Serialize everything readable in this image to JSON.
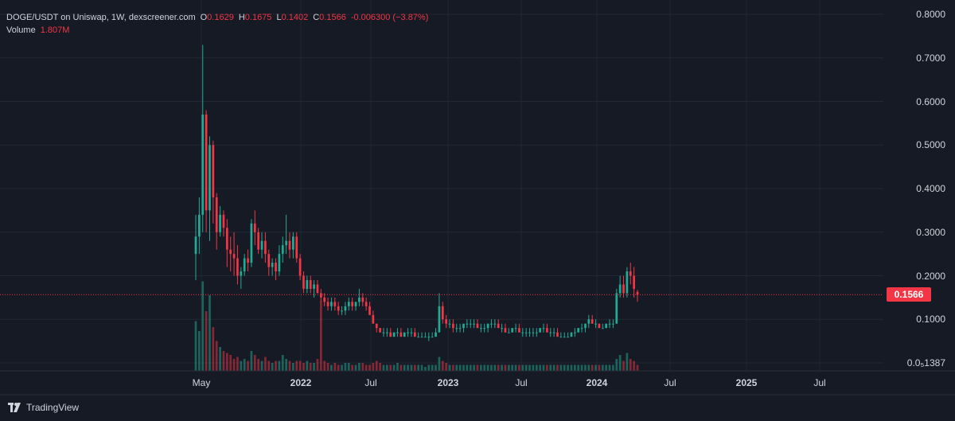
{
  "legend": {
    "pair": "DOGE/USDT on Uniswap, 1W, dexscreener.com",
    "o_key": "O",
    "o_val": "0.1629",
    "h_key": "H",
    "h_val": "0.1675",
    "l_key": "L",
    "l_val": "0.1402",
    "c_key": "C",
    "c_val": "0.1566",
    "change": "-0.006300 (−3.87%)",
    "volume_key": "Volume",
    "volume_val": "1.807M"
  },
  "price_axis": {
    "labels": [
      "0.8000",
      "0.7000",
      "0.6000",
      "0.5000",
      "0.4000",
      "0.3000",
      "0.2000",
      "0.1000",
      "0.0₅1387"
    ],
    "current_price": "0.1566"
  },
  "time_axis": {
    "labels": [
      {
        "text": "May",
        "bold": false
      },
      {
        "text": "2022",
        "bold": true
      },
      {
        "text": "Jul",
        "bold": false
      },
      {
        "text": "2023",
        "bold": true
      },
      {
        "text": "Jul",
        "bold": false
      },
      {
        "text": "2024",
        "bold": true
      },
      {
        "text": "Jul",
        "bold": false
      },
      {
        "text": "2025",
        "bold": true
      },
      {
        "text": "Jul",
        "bold": false
      }
    ]
  },
  "brand": {
    "name": "TradingView",
    "logo_icon": "tradingview-logo-icon"
  },
  "colors": {
    "up": "#22ab94",
    "down": "#f23645",
    "bg": "#161a25",
    "grid": "#232733"
  },
  "chart_data": {
    "type": "candlestick",
    "x_axis": "weekly, May 2021 – Apr 2024",
    "y_range": [
      0.0,
      0.8
    ],
    "candles": [
      [
        0.25,
        0.34,
        0.19,
        0.29
      ],
      [
        0.29,
        0.38,
        0.25,
        0.34
      ],
      [
        0.34,
        0.73,
        0.3,
        0.57
      ],
      [
        0.57,
        0.58,
        0.3,
        0.35
      ],
      [
        0.35,
        0.52,
        0.28,
        0.5
      ],
      [
        0.5,
        0.51,
        0.32,
        0.38
      ],
      [
        0.38,
        0.39,
        0.26,
        0.3
      ],
      [
        0.3,
        0.36,
        0.29,
        0.34
      ],
      [
        0.34,
        0.35,
        0.29,
        0.31
      ],
      [
        0.31,
        0.33,
        0.22,
        0.26
      ],
      [
        0.26,
        0.29,
        0.21,
        0.25
      ],
      [
        0.25,
        0.3,
        0.2,
        0.24
      ],
      [
        0.24,
        0.27,
        0.18,
        0.2
      ],
      [
        0.2,
        0.22,
        0.17,
        0.21
      ],
      [
        0.21,
        0.25,
        0.2,
        0.24
      ],
      [
        0.24,
        0.26,
        0.21,
        0.23
      ],
      [
        0.23,
        0.33,
        0.22,
        0.32
      ],
      [
        0.32,
        0.35,
        0.27,
        0.3
      ],
      [
        0.3,
        0.31,
        0.25,
        0.26
      ],
      [
        0.26,
        0.3,
        0.24,
        0.28
      ],
      [
        0.28,
        0.3,
        0.23,
        0.25
      ],
      [
        0.25,
        0.26,
        0.2,
        0.22
      ],
      [
        0.22,
        0.24,
        0.2,
        0.23
      ],
      [
        0.23,
        0.24,
        0.19,
        0.21
      ],
      [
        0.21,
        0.27,
        0.2,
        0.25
      ],
      [
        0.25,
        0.29,
        0.23,
        0.27
      ],
      [
        0.27,
        0.34,
        0.25,
        0.28
      ],
      [
        0.28,
        0.3,
        0.24,
        0.26
      ],
      [
        0.26,
        0.3,
        0.24,
        0.29
      ],
      [
        0.29,
        0.3,
        0.23,
        0.24
      ],
      [
        0.24,
        0.25,
        0.19,
        0.2
      ],
      [
        0.2,
        0.21,
        0.16,
        0.17
      ],
      [
        0.17,
        0.2,
        0.16,
        0.19
      ],
      [
        0.19,
        0.2,
        0.16,
        0.17
      ],
      [
        0.17,
        0.19,
        0.15,
        0.18
      ],
      [
        0.18,
        0.19,
        0.16,
        0.16
      ],
      [
        0.16,
        0.17,
        0.14,
        0.15
      ],
      [
        0.15,
        0.16,
        0.13,
        0.14
      ],
      [
        0.14,
        0.15,
        0.12,
        0.13
      ],
      [
        0.13,
        0.15,
        0.12,
        0.14
      ],
      [
        0.14,
        0.15,
        0.12,
        0.13
      ],
      [
        0.13,
        0.14,
        0.11,
        0.12
      ],
      [
        0.12,
        0.13,
        0.11,
        0.12
      ],
      [
        0.12,
        0.14,
        0.11,
        0.13
      ],
      [
        0.13,
        0.15,
        0.12,
        0.14
      ],
      [
        0.14,
        0.15,
        0.12,
        0.13
      ],
      [
        0.13,
        0.14,
        0.12,
        0.14
      ],
      [
        0.14,
        0.17,
        0.13,
        0.15
      ],
      [
        0.15,
        0.16,
        0.13,
        0.14
      ],
      [
        0.14,
        0.15,
        0.12,
        0.13
      ],
      [
        0.13,
        0.14,
        0.11,
        0.11
      ],
      [
        0.11,
        0.12,
        0.09,
        0.09
      ],
      [
        0.09,
        0.09,
        0.07,
        0.08
      ],
      [
        0.08,
        0.08,
        0.07,
        0.07
      ],
      [
        0.07,
        0.08,
        0.06,
        0.07
      ],
      [
        0.07,
        0.08,
        0.06,
        0.07
      ],
      [
        0.07,
        0.08,
        0.06,
        0.06
      ],
      [
        0.06,
        0.07,
        0.06,
        0.07
      ],
      [
        0.07,
        0.08,
        0.06,
        0.07
      ],
      [
        0.07,
        0.08,
        0.06,
        0.06
      ],
      [
        0.06,
        0.07,
        0.06,
        0.07
      ],
      [
        0.07,
        0.08,
        0.06,
        0.07
      ],
      [
        0.07,
        0.08,
        0.06,
        0.07
      ],
      [
        0.07,
        0.08,
        0.06,
        0.06
      ],
      [
        0.06,
        0.07,
        0.06,
        0.06
      ],
      [
        0.06,
        0.07,
        0.06,
        0.06
      ],
      [
        0.06,
        0.07,
        0.06,
        0.06
      ],
      [
        0.06,
        0.07,
        0.05,
        0.06
      ],
      [
        0.06,
        0.07,
        0.06,
        0.06
      ],
      [
        0.06,
        0.08,
        0.06,
        0.07
      ],
      [
        0.07,
        0.16,
        0.07,
        0.13
      ],
      [
        0.13,
        0.14,
        0.09,
        0.1
      ],
      [
        0.1,
        0.11,
        0.08,
        0.09
      ],
      [
        0.09,
        0.1,
        0.08,
        0.09
      ],
      [
        0.09,
        0.1,
        0.07,
        0.08
      ],
      [
        0.08,
        0.09,
        0.07,
        0.08
      ],
      [
        0.08,
        0.09,
        0.07,
        0.08
      ],
      [
        0.08,
        0.09,
        0.07,
        0.09
      ],
      [
        0.09,
        0.1,
        0.08,
        0.09
      ],
      [
        0.09,
        0.1,
        0.08,
        0.09
      ],
      [
        0.09,
        0.1,
        0.08,
        0.09
      ],
      [
        0.09,
        0.1,
        0.08,
        0.08
      ],
      [
        0.08,
        0.09,
        0.07,
        0.08
      ],
      [
        0.08,
        0.09,
        0.07,
        0.08
      ],
      [
        0.08,
        0.09,
        0.07,
        0.09
      ],
      [
        0.09,
        0.1,
        0.08,
        0.09
      ],
      [
        0.09,
        0.1,
        0.08,
        0.09
      ],
      [
        0.09,
        0.1,
        0.08,
        0.08
      ],
      [
        0.08,
        0.09,
        0.07,
        0.08
      ],
      [
        0.08,
        0.09,
        0.07,
        0.07
      ],
      [
        0.07,
        0.08,
        0.07,
        0.07
      ],
      [
        0.07,
        0.08,
        0.07,
        0.08
      ],
      [
        0.08,
        0.09,
        0.07,
        0.08
      ],
      [
        0.08,
        0.09,
        0.07,
        0.07
      ],
      [
        0.07,
        0.08,
        0.06,
        0.07
      ],
      [
        0.07,
        0.08,
        0.06,
        0.07
      ],
      [
        0.07,
        0.08,
        0.06,
        0.07
      ],
      [
        0.07,
        0.08,
        0.06,
        0.07
      ],
      [
        0.07,
        0.08,
        0.06,
        0.07
      ],
      [
        0.07,
        0.08,
        0.07,
        0.08
      ],
      [
        0.08,
        0.09,
        0.07,
        0.08
      ],
      [
        0.08,
        0.09,
        0.07,
        0.07
      ],
      [
        0.07,
        0.08,
        0.06,
        0.07
      ],
      [
        0.07,
        0.08,
        0.06,
        0.07
      ],
      [
        0.07,
        0.08,
        0.06,
        0.06
      ],
      [
        0.06,
        0.07,
        0.06,
        0.06
      ],
      [
        0.06,
        0.07,
        0.06,
        0.06
      ],
      [
        0.06,
        0.07,
        0.06,
        0.06
      ],
      [
        0.06,
        0.07,
        0.06,
        0.07
      ],
      [
        0.07,
        0.08,
        0.06,
        0.07
      ],
      [
        0.07,
        0.08,
        0.07,
        0.08
      ],
      [
        0.08,
        0.09,
        0.07,
        0.08
      ],
      [
        0.08,
        0.09,
        0.07,
        0.09
      ],
      [
        0.09,
        0.11,
        0.08,
        0.1
      ],
      [
        0.1,
        0.11,
        0.09,
        0.09
      ],
      [
        0.09,
        0.1,
        0.08,
        0.09
      ],
      [
        0.09,
        0.09,
        0.08,
        0.08
      ],
      [
        0.08,
        0.09,
        0.08,
        0.08
      ],
      [
        0.08,
        0.09,
        0.08,
        0.09
      ],
      [
        0.09,
        0.1,
        0.08,
        0.09
      ],
      [
        0.09,
        0.1,
        0.08,
        0.09
      ],
      [
        0.09,
        0.17,
        0.09,
        0.16
      ],
      [
        0.16,
        0.2,
        0.15,
        0.18
      ],
      [
        0.18,
        0.2,
        0.15,
        0.16
      ],
      [
        0.16,
        0.22,
        0.15,
        0.21
      ],
      [
        0.21,
        0.23,
        0.18,
        0.2
      ],
      [
        0.2,
        0.22,
        0.15,
        0.17
      ],
      [
        0.1629,
        0.1675,
        0.1402,
        0.1566
      ]
    ],
    "volume_shape": [
      0.25,
      0.2,
      0.45,
      0.3,
      0.38,
      0.22,
      0.15,
      0.12,
      0.1,
      0.09,
      0.08,
      0.06,
      0.07,
      0.05,
      0.06,
      0.05,
      0.1,
      0.08,
      0.06,
      0.05,
      0.07,
      0.05,
      0.04,
      0.05,
      0.05,
      0.08,
      0.06,
      0.05,
      0.04,
      0.05,
      0.05,
      0.04,
      0.05,
      0.04,
      0.04,
      0.06,
      0.35,
      0.05,
      0.04,
      0.03,
      0.04,
      0.03,
      0.03,
      0.04,
      0.04,
      0.03,
      0.03,
      0.04,
      0.04,
      0.03,
      0.03,
      0.04,
      0.05,
      0.04,
      0.03,
      0.03,
      0.03,
      0.03,
      0.04,
      0.03,
      0.03,
      0.03,
      0.03,
      0.03,
      0.03,
      0.03,
      0.02,
      0.03,
      0.03,
      0.03,
      0.07,
      0.05,
      0.04,
      0.03,
      0.03,
      0.03,
      0.03,
      0.03,
      0.03,
      0.03,
      0.03,
      0.03,
      0.03,
      0.03,
      0.03,
      0.03,
      0.03,
      0.03,
      0.03,
      0.03,
      0.03,
      0.03,
      0.03,
      0.03,
      0.03,
      0.03,
      0.03,
      0.03,
      0.03,
      0.03,
      0.03,
      0.03,
      0.03,
      0.03,
      0.03,
      0.03,
      0.03,
      0.03,
      0.03,
      0.03,
      0.03,
      0.03,
      0.03,
      0.03,
      0.03,
      0.03,
      0.03,
      0.03,
      0.03,
      0.03,
      0.03,
      0.06,
      0.08,
      0.05,
      0.09,
      0.06,
      0.05,
      0.03
    ]
  }
}
